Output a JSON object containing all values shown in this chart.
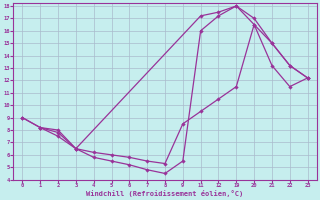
{
  "xlabel": "Windchill (Refroidissement éolien,°C)",
  "bg_color": "#c6eeee",
  "grid_color": "#aabbcc",
  "line_color": "#993399",
  "xlim": [
    -0.5,
    23.5
  ],
  "ylim": [
    4,
    18.2
  ],
  "xtick_vals": [
    0,
    1,
    2,
    3,
    4,
    5,
    6,
    7,
    8,
    9,
    11,
    12,
    19,
    20,
    21,
    22,
    23
  ],
  "ytick_vals": [
    4,
    5,
    6,
    7,
    8,
    9,
    10,
    11,
    12,
    13,
    14,
    15,
    16,
    17,
    18
  ],
  "line1_x": [
    0,
    1,
    2,
    3,
    11,
    12,
    19,
    20,
    21,
    22,
    23
  ],
  "line1_y": [
    9.0,
    8.2,
    8.0,
    6.5,
    17.2,
    17.5,
    18.0,
    17.0,
    15.0,
    13.2,
    12.2
  ],
  "line2_x": [
    0,
    1,
    2,
    3,
    4,
    5,
    6,
    7,
    8,
    9,
    11,
    12,
    19,
    20,
    21,
    22,
    23
  ],
  "line2_y": [
    9.0,
    8.2,
    7.5,
    6.5,
    5.8,
    5.5,
    5.2,
    4.8,
    4.5,
    5.5,
    16.0,
    17.2,
    18.0,
    16.5,
    15.0,
    13.2,
    12.2
  ],
  "line3_x": [
    1,
    2,
    3,
    4,
    5,
    6,
    7,
    8,
    9,
    11,
    12,
    19,
    20,
    21,
    22,
    23
  ],
  "line3_y": [
    8.2,
    7.8,
    6.5,
    6.2,
    6.0,
    5.8,
    5.5,
    5.3,
    8.5,
    9.5,
    10.5,
    11.5,
    16.5,
    13.2,
    11.5,
    12.2
  ]
}
